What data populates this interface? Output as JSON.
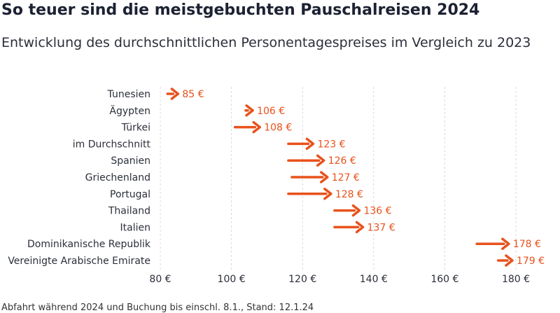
{
  "chart_data": {
    "type": "arrow",
    "title": "So teuer sind die meistgebuchten Pauschalreisen 2024",
    "subtitle": "Entwicklung des durchschnittlichen Personentagespreises im Vergleich zu 2023",
    "xlabel": "",
    "ylabel": "",
    "xlim": [
      80,
      188
    ],
    "ticks": [
      80,
      100,
      120,
      140,
      160,
      180
    ],
    "tick_labels": [
      "80 €",
      "100 €",
      "120 €",
      "140 €",
      "160 €",
      "180 €"
    ],
    "grid": true,
    "categories": [
      "Tunesien",
      "Ägypten",
      "Türkei",
      "im Durchschnitt",
      "Spanien",
      "Griechenland",
      "Portugal",
      "Thailand",
      "Italien",
      "Dominikanische Republik",
      "Vereinigte Arabische Emirate"
    ],
    "values_2023": [
      82,
      104,
      101,
      116,
      116,
      117,
      116,
      129,
      129,
      169,
      175
    ],
    "values_2024": [
      85,
      106,
      108,
      123,
      126,
      127,
      128,
      136,
      137,
      178,
      179
    ],
    "value_labels": [
      "85 €",
      "106 €",
      "108 €",
      "123 €",
      "126 €",
      "127 €",
      "128 €",
      "136 €",
      "137 €",
      "178 €",
      "179 €"
    ],
    "arrow_color": "#e8521c",
    "label_color": "#e8521c"
  },
  "source": "Abfahrt während 2024 und Buchung bis einschl. 8.1., Stand: 12.1.24"
}
